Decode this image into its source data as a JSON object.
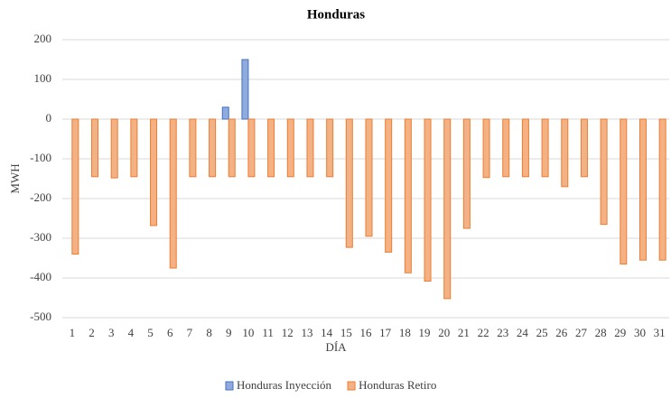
{
  "chart_data": {
    "type": "bar",
    "title": "Honduras",
    "x_label": "DÍA",
    "y_label": "MWH",
    "categories": [
      "1",
      "2",
      "3",
      "4",
      "5",
      "6",
      "7",
      "8",
      "9",
      "10",
      "11",
      "12",
      "13",
      "14",
      "15",
      "16",
      "17",
      "18",
      "19",
      "20",
      "21",
      "22",
      "23",
      "24",
      "25",
      "26",
      "27",
      "28",
      "29",
      "30",
      "31"
    ],
    "series": [
      {
        "name": "Honduras Inyección",
        "color": "#8faadc",
        "stroke": "#4472c4",
        "values": [
          0,
          0,
          0,
          0,
          0,
          0,
          0,
          0,
          30,
          150,
          0,
          0,
          0,
          0,
          0,
          0,
          0,
          0,
          0,
          0,
          0,
          0,
          0,
          0,
          0,
          0,
          0,
          0,
          0,
          0,
          0
        ]
      },
      {
        "name": "Honduras Retiro",
        "color": "#f4b183",
        "stroke": "#ed7d31",
        "values": [
          -340,
          -145,
          -148,
          -145,
          -268,
          -375,
          -145,
          -145,
          -145,
          -145,
          -145,
          -145,
          -145,
          -145,
          -323,
          -295,
          -335,
          -387,
          -408,
          -452,
          -275,
          -147,
          -145,
          -145,
          -145,
          -170,
          -145,
          -265,
          -365,
          -355,
          -355
        ]
      }
    ],
    "ylim": [
      -500,
      200
    ],
    "yticks": [
      -500,
      -400,
      -300,
      -200,
      -100,
      0,
      100,
      200
    ],
    "grid": true
  }
}
